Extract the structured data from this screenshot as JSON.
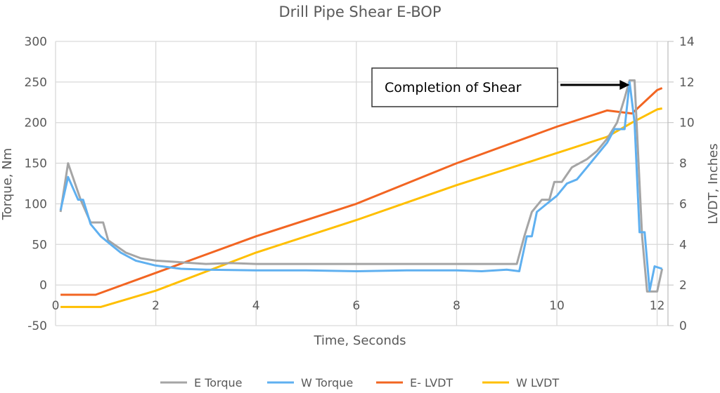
{
  "chart_data": {
    "type": "line",
    "title": "Drill Pipe Shear E-BOP",
    "xlabel": "Time, Seconds",
    "ylabel": "Torque, Nm",
    "y2label": "LVDT, Inches",
    "xlim": [
      0,
      12.2
    ],
    "ylim": [
      -50,
      300
    ],
    "y2lim": [
      0,
      14
    ],
    "xticks": [
      "0",
      "2",
      "4",
      "6",
      "8",
      "10",
      "12"
    ],
    "yticks": [
      "300",
      "250",
      "200",
      "150",
      "100",
      "50",
      "0",
      "-50"
    ],
    "y2ticks": [
      "14",
      "12",
      "10",
      "8",
      "6",
      "4",
      "2",
      "0"
    ],
    "grid": true,
    "legend_position": "bottom",
    "annotation": {
      "text": "Completion of Shear",
      "arrow_target_x": 11.45
    },
    "series": [
      {
        "name": "E Torque",
        "axis": "left",
        "color": "#a5a5a5",
        "x": [
          0.1,
          0.25,
          0.5,
          0.7,
          0.95,
          1.05,
          1.4,
          1.7,
          2,
          2.5,
          3,
          3.5,
          4,
          5,
          6,
          7,
          8,
          9.0,
          9.2,
          9.35,
          9.5,
          9.7,
          9.85,
          9.95,
          10.1,
          10.3,
          10.6,
          10.8,
          11,
          11.2,
          11.35,
          11.45,
          11.55,
          11.7,
          11.8,
          12.0,
          12.1
        ],
        "y": [
          90,
          150,
          105,
          77,
          77,
          55,
          40,
          33,
          30,
          28,
          26,
          27,
          26,
          26,
          26,
          26,
          26,
          26,
          26,
          60,
          90,
          105,
          105,
          127,
          127,
          145,
          155,
          165,
          180,
          200,
          230,
          252,
          252,
          60,
          -8,
          -8,
          20
        ]
      },
      {
        "name": "W Torque",
        "axis": "left",
        "color": "#5fb0f0",
        "x": [
          0.1,
          0.25,
          0.45,
          0.55,
          0.7,
          0.9,
          1.1,
          1.3,
          1.6,
          2,
          2.5,
          3,
          4,
          5,
          6,
          7,
          8,
          8.5,
          9,
          9.25,
          9.4,
          9.5,
          9.6,
          9.8,
          10,
          10.2,
          10.4,
          10.6,
          10.8,
          11,
          11.15,
          11.35,
          11.45,
          11.55,
          11.65,
          11.75,
          11.85,
          11.95,
          12.1
        ],
        "y": [
          92,
          133,
          105,
          105,
          75,
          60,
          50,
          40,
          30,
          24,
          20,
          19,
          18,
          18,
          17,
          18,
          18,
          17,
          19,
          17,
          60,
          60,
          90,
          100,
          110,
          125,
          130,
          145,
          160,
          175,
          192,
          192,
          250,
          200,
          65,
          65,
          -7,
          23,
          20
        ]
      },
      {
        "name": "E- LVDT",
        "axis": "right",
        "color": "#f26522",
        "x": [
          0.1,
          0.8,
          2,
          4,
          6,
          8,
          10,
          11,
          11.5,
          12,
          12.1
        ],
        "y": [
          1.52,
          1.52,
          2.6,
          4.4,
          6.0,
          8.0,
          9.8,
          10.6,
          10.45,
          11.6,
          11.7
        ]
      },
      {
        "name": "W LVDT",
        "axis": "right",
        "color": "#ffbf00",
        "x": [
          0.1,
          0.9,
          2,
          4,
          6,
          8,
          10,
          11,
          11.5,
          12,
          12.1
        ],
        "y": [
          0.92,
          0.92,
          1.72,
          3.6,
          5.2,
          6.92,
          8.5,
          9.3,
          10.0,
          10.65,
          10.7
        ]
      }
    ]
  }
}
